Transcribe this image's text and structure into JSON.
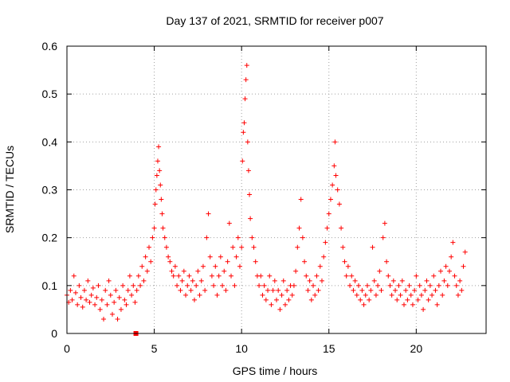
{
  "chart_data": {
    "type": "scatter",
    "title": "Day 137 of 2021, SRMTID for receiver p007",
    "xlabel": "GPS time / hours",
    "ylabel": "SRMTID / TECUs",
    "xlim": [
      0,
      24
    ],
    "ylim": [
      0,
      0.6
    ],
    "xticks": [
      0,
      5,
      10,
      15,
      20
    ],
    "xtick_labels": [
      "0",
      "5",
      "10",
      "15",
      "20"
    ],
    "yticks": [
      0,
      0.1,
      0.2,
      0.3,
      0.4,
      0.5,
      0.6
    ],
    "ytick_labels": [
      "0",
      "0.1",
      "0.2",
      "0.3",
      "0.4",
      "0.5",
      "0.6"
    ],
    "grid": true,
    "marker": "+",
    "color": "#ff0000",
    "series": [
      {
        "name": "SRMTID",
        "points": [
          [
            0.0,
            0.08
          ],
          [
            0.1,
            0.065
          ],
          [
            0.2,
            0.09
          ],
          [
            0.3,
            0.07
          ],
          [
            0.4,
            0.12
          ],
          [
            0.5,
            0.085
          ],
          [
            0.6,
            0.06
          ],
          [
            0.7,
            0.1
          ],
          [
            0.8,
            0.075
          ],
          [
            0.9,
            0.055
          ],
          [
            1.0,
            0.09
          ],
          [
            1.1,
            0.07
          ],
          [
            1.2,
            0.11
          ],
          [
            1.3,
            0.065
          ],
          [
            1.4,
            0.08
          ],
          [
            1.5,
            0.095
          ],
          [
            1.6,
            0.06
          ],
          [
            1.7,
            0.075
          ],
          [
            1.8,
            0.1
          ],
          [
            1.9,
            0.05
          ],
          [
            2.0,
            0.07
          ],
          [
            2.1,
            0.03
          ],
          [
            2.2,
            0.09
          ],
          [
            2.3,
            0.06
          ],
          [
            2.4,
            0.11
          ],
          [
            2.5,
            0.08
          ],
          [
            2.6,
            0.04
          ],
          [
            2.7,
            0.065
          ],
          [
            2.8,
            0.09
          ],
          [
            2.9,
            0.03
          ],
          [
            3.0,
            0.075
          ],
          [
            3.1,
            0.05
          ],
          [
            3.2,
            0.1
          ],
          [
            3.3,
            0.07
          ],
          [
            3.4,
            0.06
          ],
          [
            3.5,
            0.09
          ],
          [
            3.6,
            0.12
          ],
          [
            3.7,
            0.08
          ],
          [
            3.8,
            0.1
          ],
          [
            3.9,
            0.065
          ],
          [
            4.0,
            0.09
          ],
          [
            4.1,
            0.12
          ],
          [
            4.2,
            0.1
          ],
          [
            4.3,
            0.14
          ],
          [
            4.4,
            0.11
          ],
          [
            4.5,
            0.16
          ],
          [
            4.6,
            0.13
          ],
          [
            4.7,
            0.18
          ],
          [
            4.8,
            0.15
          ],
          [
            4.9,
            0.2
          ],
          [
            5.0,
            0.22
          ],
          [
            5.05,
            0.27
          ],
          [
            5.1,
            0.3
          ],
          [
            5.15,
            0.33
          ],
          [
            5.2,
            0.36
          ],
          [
            5.25,
            0.39
          ],
          [
            5.3,
            0.34
          ],
          [
            5.35,
            0.31
          ],
          [
            5.4,
            0.28
          ],
          [
            5.45,
            0.25
          ],
          [
            5.5,
            0.22
          ],
          [
            5.6,
            0.2
          ],
          [
            5.7,
            0.18
          ],
          [
            5.8,
            0.16
          ],
          [
            5.9,
            0.15
          ],
          [
            6.0,
            0.13
          ],
          [
            6.1,
            0.12
          ],
          [
            6.2,
            0.14
          ],
          [
            6.3,
            0.1
          ],
          [
            6.4,
            0.12
          ],
          [
            6.5,
            0.09
          ],
          [
            6.6,
            0.11
          ],
          [
            6.7,
            0.13
          ],
          [
            6.8,
            0.08
          ],
          [
            6.9,
            0.1
          ],
          [
            7.0,
            0.12
          ],
          [
            7.1,
            0.09
          ],
          [
            7.2,
            0.11
          ],
          [
            7.3,
            0.07
          ],
          [
            7.4,
            0.1
          ],
          [
            7.5,
            0.13
          ],
          [
            7.6,
            0.08
          ],
          [
            7.7,
            0.11
          ],
          [
            7.8,
            0.14
          ],
          [
            7.9,
            0.09
          ],
          [
            8.0,
            0.2
          ],
          [
            8.1,
            0.25
          ],
          [
            8.2,
            0.16
          ],
          [
            8.3,
            0.12
          ],
          [
            8.4,
            0.1
          ],
          [
            8.5,
            0.14
          ],
          [
            8.6,
            0.08
          ],
          [
            8.7,
            0.12
          ],
          [
            8.8,
            0.16
          ],
          [
            8.9,
            0.1
          ],
          [
            9.0,
            0.13
          ],
          [
            9.1,
            0.09
          ],
          [
            9.2,
            0.15
          ],
          [
            9.3,
            0.23
          ],
          [
            9.4,
            0.12
          ],
          [
            9.5,
            0.18
          ],
          [
            9.6,
            0.1
          ],
          [
            9.7,
            0.16
          ],
          [
            9.8,
            0.2
          ],
          [
            9.9,
            0.14
          ],
          [
            10.0,
            0.18
          ],
          [
            10.05,
            0.36
          ],
          [
            10.1,
            0.42
          ],
          [
            10.15,
            0.44
          ],
          [
            10.2,
            0.49
          ],
          [
            10.25,
            0.53
          ],
          [
            10.3,
            0.56
          ],
          [
            10.35,
            0.4
          ],
          [
            10.4,
            0.34
          ],
          [
            10.45,
            0.29
          ],
          [
            10.5,
            0.24
          ],
          [
            10.6,
            0.2
          ],
          [
            10.7,
            0.18
          ],
          [
            10.8,
            0.15
          ],
          [
            10.9,
            0.12
          ],
          [
            11.0,
            0.1
          ],
          [
            11.1,
            0.12
          ],
          [
            11.2,
            0.08
          ],
          [
            11.3,
            0.1
          ],
          [
            11.4,
            0.07
          ],
          [
            11.5,
            0.09
          ],
          [
            11.6,
            0.12
          ],
          [
            11.7,
            0.06
          ],
          [
            11.8,
            0.09
          ],
          [
            11.9,
            0.11
          ],
          [
            12.0,
            0.07
          ],
          [
            12.1,
            0.09
          ],
          [
            12.2,
            0.05
          ],
          [
            12.3,
            0.08
          ],
          [
            12.4,
            0.11
          ],
          [
            12.5,
            0.06
          ],
          [
            12.6,
            0.09
          ],
          [
            12.7,
            0.07
          ],
          [
            12.8,
            0.1
          ],
          [
            12.9,
            0.08
          ],
          [
            13.0,
            0.1
          ],
          [
            13.1,
            0.13
          ],
          [
            13.2,
            0.18
          ],
          [
            13.3,
            0.22
          ],
          [
            13.4,
            0.28
          ],
          [
            13.5,
            0.2
          ],
          [
            13.6,
            0.15
          ],
          [
            13.7,
            0.12
          ],
          [
            13.8,
            0.09
          ],
          [
            13.9,
            0.11
          ],
          [
            14.0,
            0.07
          ],
          [
            14.1,
            0.1
          ],
          [
            14.2,
            0.08
          ],
          [
            14.3,
            0.12
          ],
          [
            14.4,
            0.09
          ],
          [
            14.5,
            0.14
          ],
          [
            14.6,
            0.11
          ],
          [
            14.7,
            0.16
          ],
          [
            14.8,
            0.19
          ],
          [
            14.9,
            0.22
          ],
          [
            15.0,
            0.25
          ],
          [
            15.1,
            0.28
          ],
          [
            15.2,
            0.31
          ],
          [
            15.3,
            0.35
          ],
          [
            15.35,
            0.4
          ],
          [
            15.4,
            0.33
          ],
          [
            15.5,
            0.3
          ],
          [
            15.6,
            0.27
          ],
          [
            15.7,
            0.22
          ],
          [
            15.8,
            0.18
          ],
          [
            15.9,
            0.15
          ],
          [
            16.0,
            0.12
          ],
          [
            16.1,
            0.14
          ],
          [
            16.2,
            0.1
          ],
          [
            16.3,
            0.12
          ],
          [
            16.4,
            0.09
          ],
          [
            16.5,
            0.11
          ],
          [
            16.6,
            0.08
          ],
          [
            16.7,
            0.1
          ],
          [
            16.8,
            0.07
          ],
          [
            16.9,
            0.09
          ],
          [
            17.0,
            0.06
          ],
          [
            17.1,
            0.08
          ],
          [
            17.2,
            0.1
          ],
          [
            17.3,
            0.07
          ],
          [
            17.4,
            0.09
          ],
          [
            17.5,
            0.18
          ],
          [
            17.6,
            0.11
          ],
          [
            17.7,
            0.08
          ],
          [
            17.8,
            0.1
          ],
          [
            17.9,
            0.13
          ],
          [
            18.0,
            0.09
          ],
          [
            18.1,
            0.2
          ],
          [
            18.2,
            0.23
          ],
          [
            18.3,
            0.15
          ],
          [
            18.4,
            0.12
          ],
          [
            18.5,
            0.1
          ],
          [
            18.6,
            0.08
          ],
          [
            18.7,
            0.11
          ],
          [
            18.8,
            0.09
          ],
          [
            18.9,
            0.07
          ],
          [
            19.0,
            0.1
          ],
          [
            19.1,
            0.08
          ],
          [
            19.2,
            0.11
          ],
          [
            19.3,
            0.06
          ],
          [
            19.4,
            0.09
          ],
          [
            19.5,
            0.07
          ],
          [
            19.6,
            0.1
          ],
          [
            19.7,
            0.08
          ],
          [
            19.8,
            0.06
          ],
          [
            19.9,
            0.09
          ],
          [
            20.0,
            0.12
          ],
          [
            20.1,
            0.07
          ],
          [
            20.2,
            0.1
          ],
          [
            20.3,
            0.08
          ],
          [
            20.4,
            0.05
          ],
          [
            20.5,
            0.09
          ],
          [
            20.6,
            0.11
          ],
          [
            20.7,
            0.07
          ],
          [
            20.8,
            0.1
          ],
          [
            20.9,
            0.08
          ],
          [
            21.0,
            0.12
          ],
          [
            21.1,
            0.09
          ],
          [
            21.2,
            0.06
          ],
          [
            21.3,
            0.1
          ],
          [
            21.4,
            0.13
          ],
          [
            21.5,
            0.08
          ],
          [
            21.6,
            0.11
          ],
          [
            21.7,
            0.14
          ],
          [
            21.8,
            0.1
          ],
          [
            21.9,
            0.13
          ],
          [
            22.0,
            0.16
          ],
          [
            22.1,
            0.19
          ],
          [
            22.2,
            0.12
          ],
          [
            22.3,
            0.1
          ],
          [
            22.4,
            0.08
          ],
          [
            22.5,
            0.11
          ],
          [
            22.6,
            0.09
          ],
          [
            22.7,
            0.14
          ],
          [
            22.8,
            0.17
          ]
        ]
      }
    ],
    "annotations": [
      {
        "type": "square-marker",
        "x": 3.95,
        "y": 0.0
      }
    ]
  }
}
